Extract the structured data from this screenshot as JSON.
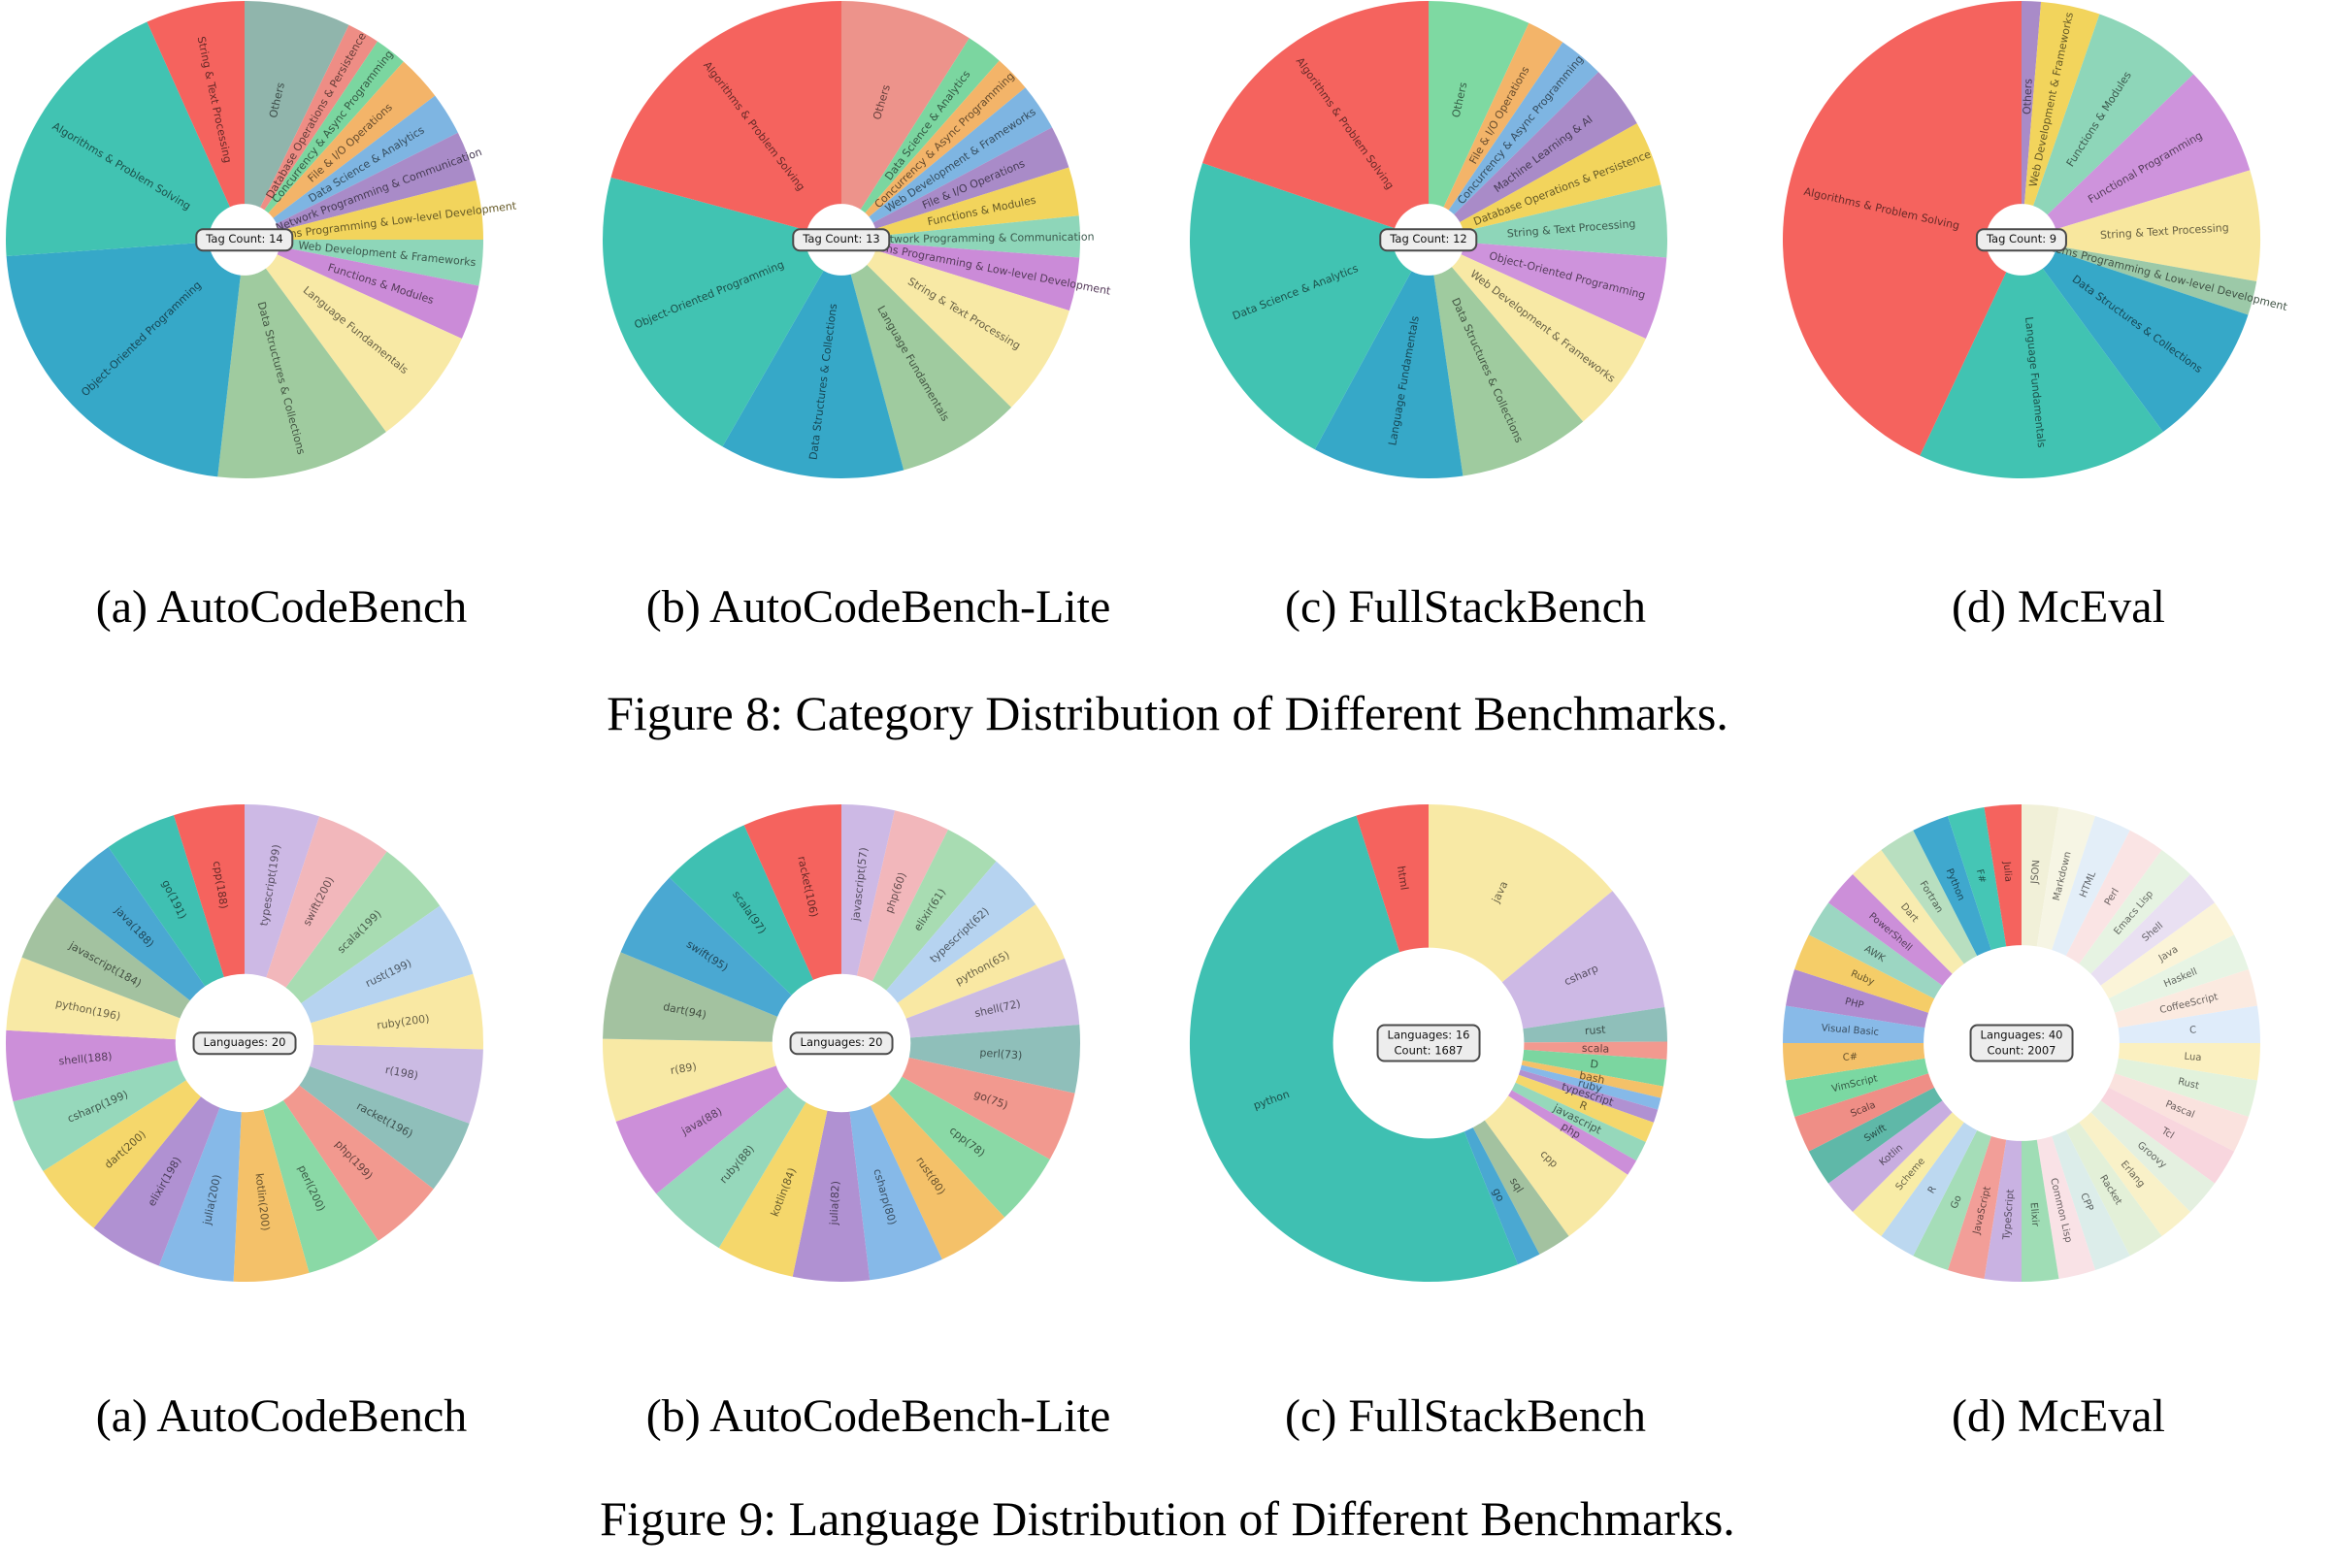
{
  "page": {
    "background": "#ffffff"
  },
  "figures": [
    {
      "title": "Figure 8: Category Distribution of Different Benchmarks."
    },
    {
      "title": "Figure 9: Language Distribution of Different Benchmarks."
    }
  ],
  "chart_data": [
    {
      "figure": "Figure 8",
      "caption": "(a) AutoCodeBench",
      "type": "pie",
      "center_lines": [
        "Tag Count: 14"
      ],
      "hole": 0.15,
      "label_radius": 0.6,
      "label_font": 11,
      "value_kind": "percent-estimate",
      "slices": [
        {
          "label": "Others",
          "value": 7.2,
          "color": "#90B5AC"
        },
        {
          "label": "Database Operations & Persistence",
          "value": 2.2,
          "color": "#EE8D85"
        },
        {
          "label": "Concurrency & Async Programming",
          "value": 2.2,
          "color": "#7BD6A0"
        },
        {
          "label": "File & I/O Operations",
          "value": 3.1,
          "color": "#F3B469"
        },
        {
          "label": "Data Science & Analytics",
          "value": 2.9,
          "color": "#7EB5E2"
        },
        {
          "label": "Network Programming & Communication",
          "value": 3.4,
          "color": "#A98BC8"
        },
        {
          "label": "Systems Programming & Low-level Development",
          "value": 4.0,
          "color": "#F2D45C"
        },
        {
          "label": "Web Development & Frameworks",
          "value": 3.1,
          "color": "#8ED6B9"
        },
        {
          "label": "Functions & Modules",
          "value": 3.7,
          "color": "#CB8BD8"
        },
        {
          "label": "Language Fundamentals",
          "value": 8.1,
          "color": "#F8E9A5"
        },
        {
          "label": "Data Structures & Collections",
          "value": 11.9,
          "color": "#9FCB9F"
        },
        {
          "label": "Object-Oriented Programming",
          "value": 22.1,
          "color": "#36A8C8"
        },
        {
          "label": "Algorithms & Problem Solving",
          "value": 19.4,
          "color": "#41C3B2"
        },
        {
          "label": "String & Text Processing",
          "value": 6.7,
          "color": "#F5635E"
        }
      ]
    },
    {
      "figure": "Figure 8",
      "caption": "(b) AutoCodeBench-Lite",
      "type": "pie",
      "center_lines": [
        "Tag Count: 13"
      ],
      "hole": 0.15,
      "label_radius": 0.6,
      "label_font": 11,
      "value_kind": "percent-estimate",
      "slices": [
        {
          "label": "Others",
          "value": 9.0,
          "color": "#ED938B"
        },
        {
          "label": "Data Science & Analytics",
          "value": 2.5,
          "color": "#7BD6A0"
        },
        {
          "label": "Concurrency & Async Programming",
          "value": 2.5,
          "color": "#F3B469"
        },
        {
          "label": "Web Development & Frameworks",
          "value": 3.2,
          "color": "#7EB5E2"
        },
        {
          "label": "File & I/O Operations",
          "value": 2.9,
          "color": "#A98BC8"
        },
        {
          "label": "Functions & Modules",
          "value": 3.3,
          "color": "#F2D45C"
        },
        {
          "label": "Network Programming & Communication",
          "value": 2.8,
          "color": "#8ED6B9"
        },
        {
          "label": "Systems Programming & Low-level Development",
          "value": 3.6,
          "color": "#CB8BD8"
        },
        {
          "label": "String & Text Processing",
          "value": 7.6,
          "color": "#F8E9A5"
        },
        {
          "label": "Language Fundamentals",
          "value": 8.4,
          "color": "#9FCB9F"
        },
        {
          "label": "Data Structures & Collections",
          "value": 12.5,
          "color": "#36A8C8"
        },
        {
          "label": "Object-Oriented Programming",
          "value": 20.9,
          "color": "#41C3B2"
        },
        {
          "label": "Algorithms & Problem Solving",
          "value": 20.8,
          "color": "#F5635E"
        }
      ]
    },
    {
      "figure": "Figure 8",
      "caption": "(c) FullStackBench",
      "type": "pie",
      "center_lines": [
        "Tag Count: 12"
      ],
      "hole": 0.15,
      "label_radius": 0.6,
      "label_font": 11,
      "value_kind": "percent-estimate",
      "slices": [
        {
          "label": "Others",
          "value": 6.9,
          "color": "#7ED9A2"
        },
        {
          "label": "File & I/O Operations",
          "value": 2.6,
          "color": "#F3B469"
        },
        {
          "label": "Concurrency & Async Programming",
          "value": 3.1,
          "color": "#7EB5E2"
        },
        {
          "label": "Machine Learning & AI",
          "value": 4.3,
          "color": "#A98BC8"
        },
        {
          "label": "Database Operations & Persistence",
          "value": 4.4,
          "color": "#F2D45C"
        },
        {
          "label": "String & Text Processing",
          "value": 4.9,
          "color": "#8ED6B9"
        },
        {
          "label": "Object-Oriented Programming",
          "value": 5.6,
          "color": "#CE93DC"
        },
        {
          "label": "Web Development & Frameworks",
          "value": 7.0,
          "color": "#F8E9A5"
        },
        {
          "label": "Data Structures & Collections",
          "value": 8.9,
          "color": "#9FCB9F"
        },
        {
          "label": "Language Fundamentals",
          "value": 10.2,
          "color": "#36A8C8"
        },
        {
          "label": "Data Science & Analytics",
          "value": 22.3,
          "color": "#41C3B2"
        },
        {
          "label": "Algorithms & Problem Solving",
          "value": 19.8,
          "color": "#F5635E"
        }
      ]
    },
    {
      "figure": "Figure 8",
      "caption": "(d) McEval",
      "type": "pie",
      "center_lines": [
        "Tag Count: 9"
      ],
      "hole": 0.15,
      "label_radius": 0.6,
      "label_font": 11,
      "value_kind": "percent-estimate",
      "slices": [
        {
          "label": "Others",
          "value": 1.3,
          "color": "#A98BC8"
        },
        {
          "label": "Web Development & Frameworks",
          "value": 4.0,
          "color": "#F2D45C"
        },
        {
          "label": "Functions & Modules",
          "value": 7.5,
          "color": "#8ED6B9"
        },
        {
          "label": "Functional Programming",
          "value": 7.5,
          "color": "#CE93DC"
        },
        {
          "label": "String & Text Processing",
          "value": 7.5,
          "color": "#F8E79E"
        },
        {
          "label": "Systems Programming & Low-level Development",
          "value": 2.3,
          "color": "#9CC9A8"
        },
        {
          "label": "Data Structures & Collections",
          "value": 9.8,
          "color": "#36A8C8"
        },
        {
          "label": "Language Fundamentals",
          "value": 17.1,
          "color": "#41C3B2"
        },
        {
          "label": "Algorithms & Problem Solving",
          "value": 43.0,
          "color": "#F5635E"
        }
      ]
    },
    {
      "figure": "Figure 9",
      "caption": "(a) AutoCodeBench",
      "type": "donut",
      "center_lines": [
        "Languages: 20"
      ],
      "hole": 0.29,
      "label_radius": 0.67,
      "label_font": 11,
      "value_kind": "count",
      "slices": [
        {
          "label": "typescript(199)",
          "value": 199,
          "color": "#CDB9E5"
        },
        {
          "label": "swift(200)",
          "value": 200,
          "color": "#F2B7BB"
        },
        {
          "label": "scala(199)",
          "value": 199,
          "color": "#A8DCB2"
        },
        {
          "label": "rust(199)",
          "value": 199,
          "color": "#B6D3F0"
        },
        {
          "label": "ruby(200)",
          "value": 200,
          "color": "#F9E8A3"
        },
        {
          "label": "r(198)",
          "value": 198,
          "color": "#CBBBE3"
        },
        {
          "label": "racket(196)",
          "value": 196,
          "color": "#8FBFBA"
        },
        {
          "label": "php(199)",
          "value": 199,
          "color": "#F2998F"
        },
        {
          "label": "perl(200)",
          "value": 200,
          "color": "#8AD9A6"
        },
        {
          "label": "kotlin(200)",
          "value": 200,
          "color": "#F4C169"
        },
        {
          "label": "julia(200)",
          "value": 200,
          "color": "#86B9E8"
        },
        {
          "label": "elixir(198)",
          "value": 198,
          "color": "#B091D2"
        },
        {
          "label": "dart(200)",
          "value": 200,
          "color": "#F5D76B"
        },
        {
          "label": "csharp(199)",
          "value": 199,
          "color": "#96D8BB"
        },
        {
          "label": "shell(188)",
          "value": 188,
          "color": "#CC8FD9"
        },
        {
          "label": "python(196)",
          "value": 196,
          "color": "#F8E9A5"
        },
        {
          "label": "javascript(184)",
          "value": 184,
          "color": "#A3C2A0"
        },
        {
          "label": "java(188)",
          "value": 188,
          "color": "#4AA8D2"
        },
        {
          "label": "go(191)",
          "value": 191,
          "color": "#3FC0B2"
        },
        {
          "label": "cpp(188)",
          "value": 188,
          "color": "#F5635E"
        }
      ]
    },
    {
      "figure": "Figure 9",
      "caption": "(b) AutoCodeBench-Lite",
      "type": "donut",
      "center_lines": [
        "Languages: 20"
      ],
      "hole": 0.29,
      "label_radius": 0.67,
      "label_font": 11,
      "value_kind": "count",
      "slices": [
        {
          "label": "javascript(57)",
          "value": 57,
          "color": "#CDB9E5"
        },
        {
          "label": "php(60)",
          "value": 60,
          "color": "#F2B7BB"
        },
        {
          "label": "elixir(61)",
          "value": 61,
          "color": "#A8DCB2"
        },
        {
          "label": "typescript(62)",
          "value": 62,
          "color": "#B6D3F0"
        },
        {
          "label": "python(65)",
          "value": 65,
          "color": "#F9E8A3"
        },
        {
          "label": "shell(72)",
          "value": 72,
          "color": "#CBBBE3"
        },
        {
          "label": "perl(73)",
          "value": 73,
          "color": "#8FBFBA"
        },
        {
          "label": "go(75)",
          "value": 75,
          "color": "#F2998F"
        },
        {
          "label": "cpp(78)",
          "value": 78,
          "color": "#8AD9A6"
        },
        {
          "label": "rust(80)",
          "value": 80,
          "color": "#F4C169"
        },
        {
          "label": "csharp(80)",
          "value": 80,
          "color": "#86B9E8"
        },
        {
          "label": "julia(82)",
          "value": 82,
          "color": "#B091D2"
        },
        {
          "label": "kotlin(84)",
          "value": 84,
          "color": "#F5D76B"
        },
        {
          "label": "ruby(88)",
          "value": 88,
          "color": "#96D8BB"
        },
        {
          "label": "java(88)",
          "value": 88,
          "color": "#CC8FD9"
        },
        {
          "label": "r(89)",
          "value": 89,
          "color": "#F8E9A5"
        },
        {
          "label": "dart(94)",
          "value": 94,
          "color": "#A3C2A0"
        },
        {
          "label": "swift(95)",
          "value": 95,
          "color": "#4AA8D2"
        },
        {
          "label": "scala(97)",
          "value": 97,
          "color": "#3FC0B2"
        },
        {
          "label": "racket(106)",
          "value": 106,
          "color": "#F5635E"
        }
      ]
    },
    {
      "figure": "Figure 9",
      "caption": "(c) FullStackBench",
      "type": "donut",
      "center_lines": [
        "Languages: 16",
        "Count: 1687"
      ],
      "hole": 0.4,
      "label_radius": 0.7,
      "label_font": 11,
      "value_kind": "percent-estimate",
      "slices": [
        {
          "label": "java",
          "value": 14.0,
          "color": "#F8E9A5"
        },
        {
          "label": "csharp",
          "value": 8.6,
          "color": "#CDB9E5"
        },
        {
          "label": "rust",
          "value": 2.3,
          "color": "#8FBFBA"
        },
        {
          "label": "scala",
          "value": 1.2,
          "color": "#F2998F"
        },
        {
          "label": "D",
          "value": 1.8,
          "color": "#7BD6A0"
        },
        {
          "label": "bash",
          "value": 0.8,
          "color": "#F4C169"
        },
        {
          "label": "ruby",
          "value": 0.8,
          "color": "#86B9E8"
        },
        {
          "label": "typescript",
          "value": 0.9,
          "color": "#B091D2"
        },
        {
          "label": "R",
          "value": 1.4,
          "color": "#F5D76B"
        },
        {
          "label": "javascript",
          "value": 1.4,
          "color": "#96D8BB"
        },
        {
          "label": "php",
          "value": 1.1,
          "color": "#CC8FD9"
        },
        {
          "label": "cpp",
          "value": 5.7,
          "color": "#F8E9A5"
        },
        {
          "label": "sql",
          "value": 2.3,
          "color": "#A3C2A0"
        },
        {
          "label": "go",
          "value": 1.6,
          "color": "#4AA8D2"
        },
        {
          "label": "python",
          "value": 51.2,
          "color": "#3FC0B2"
        },
        {
          "label": "html",
          "value": 4.9,
          "color": "#F5635E"
        }
      ]
    },
    {
      "figure": "Figure 9",
      "caption": "(d) McEval",
      "type": "donut",
      "center_lines": [
        "Languages: 40",
        "Count: 2007"
      ],
      "hole": 0.41,
      "label_radius": 0.72,
      "label_font": 10,
      "value_kind": "percent-estimate",
      "slices": [
        {
          "label": "JSON",
          "value": 2.5,
          "color": "#F1F0D8"
        },
        {
          "label": "Markdown",
          "value": 2.5,
          "color": "#F6F5E4"
        },
        {
          "label": "HTML",
          "value": 2.5,
          "color": "#E3EEF8"
        },
        {
          "label": "Perl",
          "value": 2.5,
          "color": "#FAE4E4"
        },
        {
          "label": "Emacs Lisp",
          "value": 2.5,
          "color": "#E6F3E2"
        },
        {
          "label": "Shell",
          "value": 2.5,
          "color": "#E9E0F2"
        },
        {
          "label": "Java",
          "value": 2.5,
          "color": "#FBF4D8"
        },
        {
          "label": "Haskell",
          "value": 2.5,
          "color": "#E7F4E4"
        },
        {
          "label": "CoffeeScript",
          "value": 2.5,
          "color": "#FBEAE0"
        },
        {
          "label": "C",
          "value": 2.5,
          "color": "#DFECFA"
        },
        {
          "label": "Lua",
          "value": 2.5,
          "color": "#FBF0C0"
        },
        {
          "label": "Rust",
          "value": 2.5,
          "color": "#E2F2DC"
        },
        {
          "label": "Pascal",
          "value": 2.5,
          "color": "#FAE2DE"
        },
        {
          "label": "Tcl",
          "value": 2.5,
          "color": "#F8D6DE"
        },
        {
          "label": "Groovy",
          "value": 2.5,
          "color": "#E4F0E0"
        },
        {
          "label": "Erlang",
          "value": 2.5,
          "color": "#F9F1C8"
        },
        {
          "label": "Racket",
          "value": 2.5,
          "color": "#E3F0D8"
        },
        {
          "label": "CPP",
          "value": 2.5,
          "color": "#DCEDEA"
        },
        {
          "label": "Common Lisp",
          "value": 2.5,
          "color": "#F9E2E6"
        },
        {
          "label": "Elixir",
          "value": 2.5,
          "color": "#9FDDB5"
        },
        {
          "label": "TypeScript",
          "value": 2.5,
          "color": "#C9B2E2"
        },
        {
          "label": "JavaScript",
          "value": 2.5,
          "color": "#F29E98"
        },
        {
          "label": "Go",
          "value": 2.5,
          "color": "#A5DDB8"
        },
        {
          "label": "R",
          "value": 2.5,
          "color": "#BCD8F0"
        },
        {
          "label": "Scheme",
          "value": 2.5,
          "color": "#F8ECA6"
        },
        {
          "label": "Kotlin",
          "value": 2.5,
          "color": "#C8ADE0"
        },
        {
          "label": "Swift",
          "value": 2.5,
          "color": "#5FB8A8"
        },
        {
          "label": "Scala",
          "value": 2.5,
          "color": "#EF8E86"
        },
        {
          "label": "VimScript",
          "value": 2.5,
          "color": "#7BD8A2"
        },
        {
          "label": "C#",
          "value": 2.5,
          "color": "#F4C169"
        },
        {
          "label": "Visual Basic",
          "value": 2.5,
          "color": "#88BAE8"
        },
        {
          "label": "PHP",
          "value": 2.5,
          "color": "#B18CD0"
        },
        {
          "label": "Ruby",
          "value": 2.5,
          "color": "#F5CD68"
        },
        {
          "label": "AWK",
          "value": 2.5,
          "color": "#9CD6C2"
        },
        {
          "label": "PowerShell",
          "value": 2.5,
          "color": "#CC8FD9"
        },
        {
          "label": "Dart",
          "value": 2.5,
          "color": "#F8ECB0"
        },
        {
          "label": "Fortran",
          "value": 2.5,
          "color": "#B8DFC0"
        },
        {
          "label": "Python",
          "value": 2.5,
          "color": "#3FA8CE"
        },
        {
          "label": "F#",
          "value": 2.5,
          "color": "#45C6B5"
        },
        {
          "label": "Julia",
          "value": 2.5,
          "color": "#F5635E"
        }
      ]
    }
  ]
}
